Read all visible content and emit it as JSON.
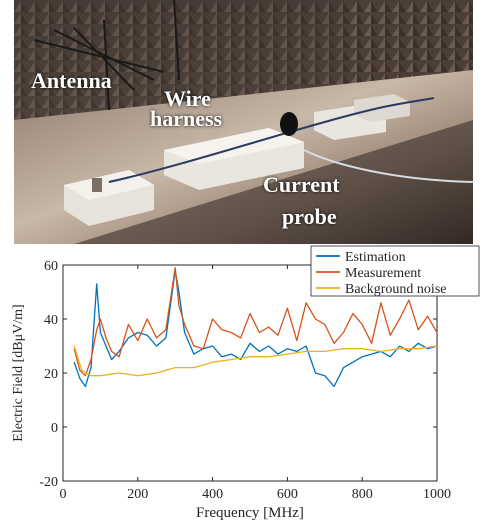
{
  "photo": {
    "labels": {
      "antenna": "Antenna",
      "wire_line1": "Wire",
      "wire_line2": "harness",
      "current_line1": "Current",
      "current_line2": "probe"
    }
  },
  "chart_data": {
    "type": "line",
    "xlabel": "Frequency [MHz]",
    "ylabel": "Electric Field [dBμV/m]",
    "xlim": [
      0,
      1000
    ],
    "ylim": [
      -20,
      60
    ],
    "xticks": [
      "0",
      "200",
      "400",
      "600",
      "800",
      "1000"
    ],
    "yticks": [
      "-20",
      "0",
      "20",
      "40",
      "60"
    ],
    "grid": false,
    "legend_position": "top-right",
    "series": [
      {
        "name": "Estimation",
        "color": "#0072BD",
        "x": [
          30,
          45,
          60,
          75,
          90,
          100,
          115,
          130,
          150,
          175,
          200,
          225,
          250,
          275,
          300,
          310,
          325,
          350,
          375,
          400,
          425,
          450,
          475,
          500,
          525,
          550,
          575,
          600,
          625,
          650,
          675,
          700,
          725,
          750,
          775,
          800,
          825,
          850,
          875,
          900,
          925,
          950,
          975,
          1000
        ],
        "y": [
          24,
          18,
          15,
          22,
          53,
          35,
          30,
          25,
          28,
          33,
          35,
          34,
          30,
          33,
          58,
          50,
          35,
          27,
          29,
          30,
          26,
          27,
          25,
          31,
          28,
          30,
          27,
          29,
          28,
          30,
          20,
          19,
          15,
          22,
          24,
          26,
          27,
          28,
          26,
          30,
          28,
          31,
          29,
          30
        ]
      },
      {
        "name": "Measurement",
        "color": "#D95319",
        "x": [
          30,
          45,
          60,
          75,
          90,
          100,
          115,
          130,
          150,
          175,
          200,
          225,
          250,
          275,
          300,
          310,
          325,
          350,
          375,
          400,
          425,
          450,
          475,
          500,
          525,
          550,
          575,
          600,
          625,
          650,
          675,
          700,
          725,
          750,
          775,
          800,
          825,
          850,
          875,
          900,
          925,
          950,
          975,
          1000
        ],
        "y": [
          29,
          21,
          19,
          25,
          36,
          40,
          33,
          28,
          26,
          38,
          32,
          40,
          33,
          36,
          59,
          45,
          38,
          30,
          29,
          40,
          36,
          35,
          33,
          42,
          35,
          37,
          34,
          44,
          32,
          46,
          40,
          38,
          31,
          35,
          42,
          38,
          31,
          46,
          34,
          40,
          47,
          36,
          41,
          35
        ]
      },
      {
        "name": "Background noise",
        "color": "#EDB120",
        "x": [
          30,
          50,
          75,
          100,
          150,
          200,
          250,
          300,
          350,
          400,
          450,
          500,
          550,
          600,
          650,
          700,
          750,
          800,
          850,
          900,
          950,
          1000
        ],
        "y": [
          30,
          21,
          19,
          19,
          20,
          19,
          20,
          22,
          22,
          24,
          25,
          26,
          26,
          27,
          28,
          28,
          29,
          29,
          28,
          29,
          29,
          30
        ]
      }
    ]
  }
}
